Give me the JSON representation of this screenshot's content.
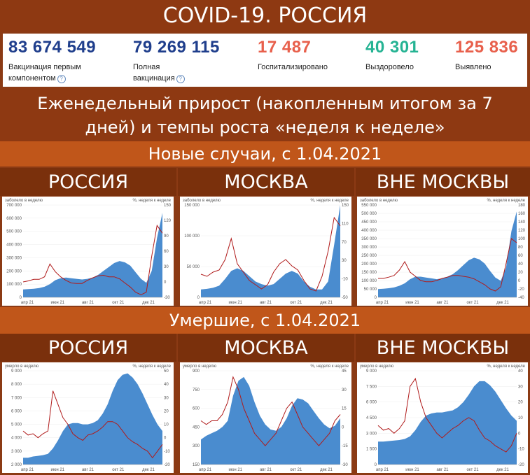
{
  "title": "COVID-19. РОССИЯ",
  "stats": [
    {
      "value": "83 674 549",
      "label1": "Вакцинация первым",
      "label2": "компонентом",
      "help": "?",
      "color": "#1f3e8c"
    },
    {
      "value": "79 269 115",
      "label1": "Полная",
      "label2": "вакцинация",
      "help": "?",
      "color": "#1f3e8c"
    },
    {
      "value": "17 487",
      "label1": "Госпитализировано",
      "label2": "",
      "help": "",
      "color": "#e8604c"
    },
    {
      "value": "40 301",
      "label1": "Выздоровело",
      "label2": "",
      "help": "",
      "color": "#25b393"
    },
    {
      "value": "125 836",
      "label1": "Выявлено",
      "label2": "",
      "help": "",
      "color": "#e8604c"
    }
  ],
  "weekly_title_line1": "Еженедельный прирост (накопленным итогом за 7",
  "weekly_title_line2": "дней) и темпы роста «неделя к неделе»",
  "cases_title": "Новые случаи, с 1.04.2021",
  "deaths_title": "Умершие, с 1.04.2021",
  "region_labels": [
    "РОССИЯ",
    "МОСКВА",
    "ВНЕ МОСКВЫ",
    "РОССИЯ",
    "МОСКВА",
    "ВНЕ МОСКВЫ"
  ],
  "colors": {
    "area": "#4a8ccf",
    "line": "#b01b1b"
  },
  "chart_data": [
    {
      "type": "area",
      "region": "РОССИЯ",
      "metric": "cases",
      "left_label": "заболело в неделю",
      "right_label": "%, неделя к неделе",
      "left_ticks": [
        "0",
        "100 000",
        "200 000",
        "300 000",
        "400 000",
        "500 000",
        "600 000",
        "700 000"
      ],
      "left_ylim": [
        0,
        700000
      ],
      "right_ticks": [
        "-30",
        "0",
        "30",
        "60",
        "90",
        "120",
        "150"
      ],
      "right_ylim": [
        -30,
        150
      ],
      "x_ticks": [
        "апр 21",
        "июн 21",
        "авг 21",
        "окт 21",
        "дек 21"
      ],
      "weekly": [
        60000,
        62000,
        65000,
        70000,
        80000,
        100000,
        130000,
        145000,
        150000,
        145000,
        140000,
        135000,
        140000,
        150000,
        170000,
        200000,
        230000,
        260000,
        275000,
        265000,
        240000,
        190000,
        140000,
        110000,
        200000,
        450000,
        640000
      ],
      "growth": [
        0,
        2,
        5,
        5,
        10,
        35,
        20,
        10,
        3,
        -2,
        -3,
        -3,
        3,
        8,
        12,
        13,
        10,
        10,
        6,
        -2,
        -10,
        -20,
        -25,
        -20,
        50,
        110,
        95
      ]
    },
    {
      "type": "area",
      "region": "МОСКВА",
      "metric": "cases",
      "left_label": "заболело в неделю",
      "right_label": "%, неделя к неделе",
      "left_ticks": [
        "0",
        "50 000",
        "100 000",
        "150 000"
      ],
      "left_ylim": [
        0,
        175000
      ],
      "right_ticks": [
        "-50",
        "-10",
        "30",
        "70",
        "110",
        "150"
      ],
      "right_ylim": [
        -50,
        170
      ],
      "x_ticks": [
        "апр 21",
        "июн 21",
        "авг 21",
        "окт 21",
        "дек 21"
      ],
      "weekly": [
        15000,
        16000,
        18000,
        22000,
        35000,
        50000,
        55000,
        50000,
        40000,
        30000,
        25000,
        22000,
        25000,
        35000,
        45000,
        50000,
        45000,
        30000,
        20000,
        15000,
        15000,
        30000,
        100000,
        175000
      ],
      "growth": [
        5,
        0,
        10,
        15,
        40,
        90,
        30,
        10,
        -10,
        -20,
        -30,
        -20,
        10,
        30,
        40,
        25,
        15,
        -10,
        -30,
        -35,
        0,
        60,
        140,
        120
      ]
    },
    {
      "type": "area",
      "region": "ВНЕ МОСКВЫ",
      "metric": "cases",
      "left_label": "заболело в неделю",
      "right_label": "%, неделя к неделе",
      "left_ticks": [
        "0",
        "50 000",
        "100 000",
        "150 000",
        "200 000",
        "250 000",
        "300 000",
        "350 000",
        "400 000",
        "450 000",
        "500 000",
        "550 000"
      ],
      "left_ylim": [
        0,
        560000
      ],
      "right_ticks": [
        "-40",
        "-20",
        "0",
        "20",
        "40",
        "60",
        "80",
        "100",
        "120",
        "140",
        "160",
        "180"
      ],
      "right_ylim": [
        -40,
        180
      ],
      "x_ticks": [
        "апр 21",
        "июн 21",
        "авг 21",
        "окт 21",
        "дек 21"
      ],
      "weekly": [
        50000,
        52000,
        55000,
        60000,
        70000,
        85000,
        110000,
        125000,
        125000,
        120000,
        115000,
        110000,
        115000,
        125000,
        140000,
        165000,
        195000,
        225000,
        240000,
        230000,
        205000,
        160000,
        120000,
        100000,
        180000,
        400000,
        520000
      ],
      "growth": [
        5,
        5,
        8,
        12,
        25,
        45,
        20,
        10,
        0,
        -3,
        -3,
        0,
        5,
        8,
        12,
        12,
        10,
        8,
        4,
        -3,
        -10,
        -20,
        -25,
        -15,
        40,
        100,
        90
      ]
    },
    {
      "type": "area",
      "region": "РОССИЯ",
      "metric": "deaths",
      "left_label": "умерло в неделю",
      "right_label": "%, неделя к неделе",
      "left_ticks": [
        "2 000",
        "3 000",
        "4 000",
        "5 000",
        "6 000",
        "7 000",
        "8 000",
        "9 000"
      ],
      "left_ylim": [
        2000,
        9000
      ],
      "right_ticks": [
        "-20",
        "-10",
        "0",
        "10",
        "20",
        "30",
        "40",
        "50"
      ],
      "right_ylim": [
        -20,
        50
      ],
      "x_ticks": [
        "апр 21",
        "июн 21",
        "авг 21",
        "окт 21",
        "дек 21"
      ],
      "weekly": [
        2500,
        2500,
        2600,
        2650,
        2700,
        2800,
        3200,
        3800,
        4500,
        5000,
        5100,
        5100,
        5000,
        5000,
        5100,
        5300,
        5800,
        6500,
        7500,
        8300,
        8700,
        8800,
        8500,
        8000,
        7300,
        6500,
        5700,
        5000,
        4500
      ],
      "growth": [
        5,
        2,
        3,
        0,
        3,
        5,
        35,
        25,
        15,
        10,
        3,
        0,
        -2,
        2,
        3,
        5,
        8,
        12,
        12,
        10,
        5,
        0,
        -3,
        -5,
        -8,
        -10,
        -15,
        -10,
        -5
      ]
    },
    {
      "type": "area",
      "region": "МОСКВА",
      "metric": "deaths",
      "left_label": "умерло в неделю",
      "right_label": "%, неделя к неделе",
      "left_ticks": [
        "150",
        "300",
        "450",
        "600",
        "750",
        "900"
      ],
      "left_ylim": [
        150,
        900
      ],
      "right_ticks": [
        "-30",
        "-15",
        "0",
        "15",
        "30",
        "45"
      ],
      "right_ylim": [
        -30,
        45
      ],
      "x_ticks": [
        "апр 21",
        "июн 21",
        "авг 21",
        "окт 21",
        "дек 21"
      ],
      "weekly": [
        350,
        380,
        400,
        420,
        450,
        500,
        700,
        820,
        850,
        780,
        650,
        540,
        470,
        430,
        420,
        450,
        520,
        620,
        680,
        670,
        640,
        580,
        520,
        470,
        440,
        460,
        520
      ],
      "growth": [
        5,
        2,
        5,
        5,
        10,
        20,
        40,
        30,
        15,
        5,
        -5,
        -10,
        -15,
        -10,
        -5,
        5,
        15,
        20,
        10,
        0,
        -5,
        -10,
        -15,
        -10,
        -5,
        5,
        10
      ]
    },
    {
      "type": "area",
      "region": "ВНЕ МОСКВЫ",
      "metric": "deaths",
      "left_label": "умерло в неделю",
      "right_label": "%, неделя к неделе",
      "left_ticks": [
        "0",
        "1 500",
        "3 000",
        "4 500",
        "6 000",
        "7 500",
        "9 000"
      ],
      "left_ylim": [
        0,
        9000
      ],
      "right_ticks": [
        "-20",
        "-10",
        "0",
        "10",
        "20",
        "30",
        "40"
      ],
      "right_ylim": [
        -20,
        40
      ],
      "x_ticks": [
        "апр 21",
        "июн 21",
        "авг 21",
        "окт 21",
        "дек 21"
      ],
      "weekly": [
        2200,
        2200,
        2250,
        2300,
        2350,
        2450,
        2700,
        3300,
        4100,
        4700,
        4900,
        5000,
        5000,
        5100,
        5200,
        5500,
        6000,
        6700,
        7500,
        8000,
        8000,
        7600,
        7000,
        6200,
        5400,
        4700,
        4200
      ],
      "growth": [
        5,
        2,
        3,
        0,
        3,
        8,
        30,
        35,
        20,
        10,
        5,
        0,
        -3,
        0,
        3,
        5,
        8,
        10,
        8,
        2,
        -3,
        -5,
        -8,
        -10,
        -12,
        -8,
        0
      ]
    }
  ]
}
